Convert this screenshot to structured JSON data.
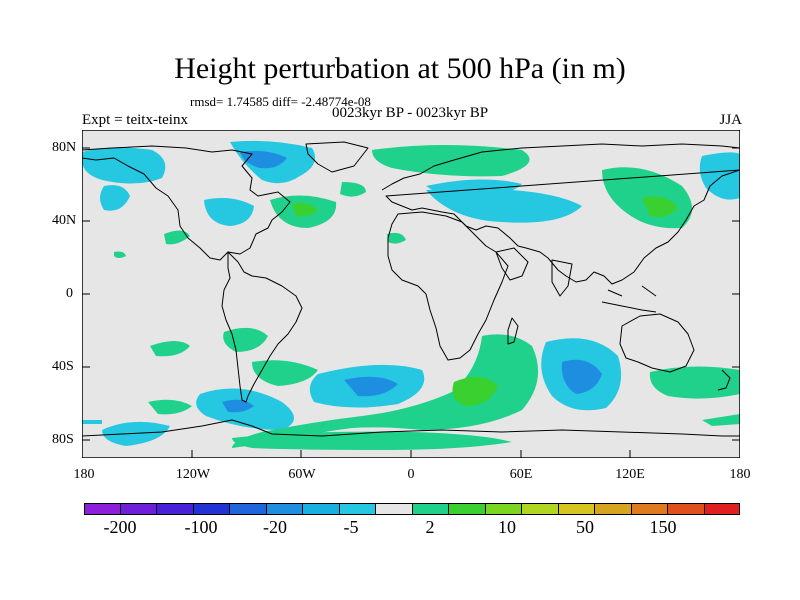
{
  "title": "Height perturbation at 500 hPa (in m)",
  "stats": "rmsd= 1.74585 diff= -2.48774e-08",
  "expt": "Expt = teitx-teinx",
  "period": "0023kyr BP - 0023kyr BP",
  "season": "JJA",
  "map": {
    "projection": "cylindrical-equidistant",
    "lon_range": [
      -180,
      180
    ],
    "lat_range": [
      -90,
      90
    ],
    "background_color": "#e6e6e6",
    "coastline_color": "#000000",
    "lat_labels": [
      "80N",
      "40N",
      "0",
      "40S",
      "80S"
    ],
    "lon_labels": [
      "180",
      "120W",
      "60W",
      "0",
      "60E",
      "120E",
      "180"
    ]
  },
  "colorbar": {
    "colors": [
      "#8c1fd9",
      "#6e1fd9",
      "#4a1fd9",
      "#2233d6",
      "#1f66dd",
      "#1e8fe0",
      "#18b0e0",
      "#25c8e0",
      "#e6e6e6",
      "#1fd18a",
      "#3ad130",
      "#7ad61f",
      "#b0d61f",
      "#d6c41f",
      "#d6a51f",
      "#e07a1f",
      "#e0501f",
      "#e0201f"
    ],
    "labels": [
      "-200",
      "-100",
      "-20",
      "-5",
      "2",
      "10",
      "50",
      "150"
    ]
  }
}
